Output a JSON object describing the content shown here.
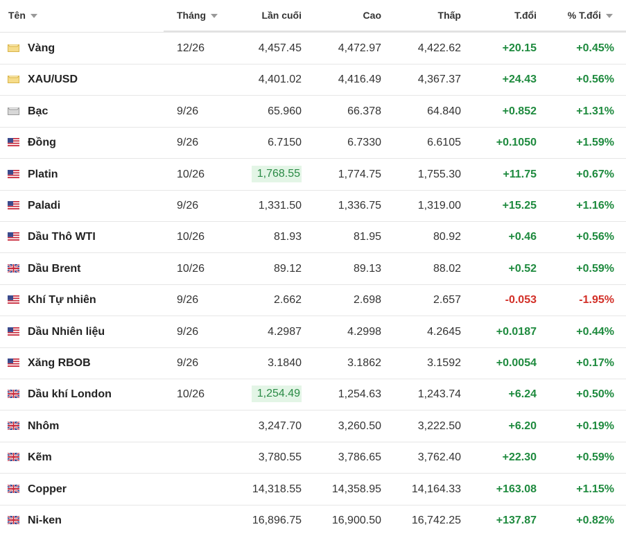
{
  "table": {
    "header": [
      "Tên",
      "Tháng",
      "Lần cuối",
      "Cao",
      "Thấp",
      "T.đổi",
      "% T.đổi"
    ],
    "rows": [
      [
        "Vàng",
        "12/26",
        "4,457.45",
        "4,472.97",
        "4,422.62",
        "+20.15",
        "+0.45%"
      ],
      [
        "XAU/USD",
        null,
        "4,401.02",
        "4,416.49",
        "4,367.37",
        "+24.43",
        "+0.56%"
      ],
      [
        "Bạc",
        "9/26",
        "65.960",
        "66.378",
        "64.840",
        "+0.852",
        "+1.31%"
      ],
      [
        "Đồng",
        "9/26",
        "6.7150",
        "6.7330",
        "6.6105",
        "+0.1050",
        "+1.59%"
      ],
      [
        "Platin",
        "10/26",
        "1,768.55",
        "1,774.75",
        "1,755.30",
        "+11.75",
        "+0.67%"
      ],
      [
        "Paladi",
        "9/26",
        "1,331.50",
        "1,336.75",
        "1,319.00",
        "+15.25",
        "+1.16%"
      ],
      [
        "Dầu Thô WTI",
        "10/26",
        "81.93",
        "81.95",
        "80.92",
        "+0.46",
        "+0.56%"
      ],
      [
        "Dầu Brent",
        "10/26",
        "89.12",
        "89.13",
        "88.02",
        "+0.52",
        "+0.59%"
      ],
      [
        "Khí Tự nhiên",
        "9/26",
        "2.662",
        "2.698",
        "2.657",
        "-0.053",
        "-1.95%"
      ],
      [
        "Dầu Nhiên liệu",
        "9/26",
        "4.2987",
        "4.2998",
        "4.2645",
        "+0.0187",
        "+0.44%"
      ],
      [
        "Xăng RBOB",
        "9/26",
        "3.1840",
        "3.1862",
        "3.1592",
        "+0.0054",
        "+0.17%"
      ],
      [
        "Dầu khí London",
        "10/26",
        "1,254.49",
        "1,254.63",
        "1,243.74",
        "+6.24",
        "+0.50%"
      ],
      [
        "Nhôm",
        null,
        "3,247.70",
        "3,260.50",
        "3,222.50",
        "+6.20",
        "+0.19%"
      ],
      [
        "Kẽm",
        null,
        "3,780.55",
        "3,786.65",
        "3,762.40",
        "+22.30",
        "+0.59%"
      ],
      [
        "Copper",
        null,
        "14,318.55",
        "14,358.95",
        "14,164.33",
        "+163.08",
        "+1.15%"
      ],
      [
        "Ni-ken",
        null,
        "16,896.75",
        "16,900.50",
        "16,742.25",
        "+137.87",
        "+0.82%"
      ]
    ]
  }
}
